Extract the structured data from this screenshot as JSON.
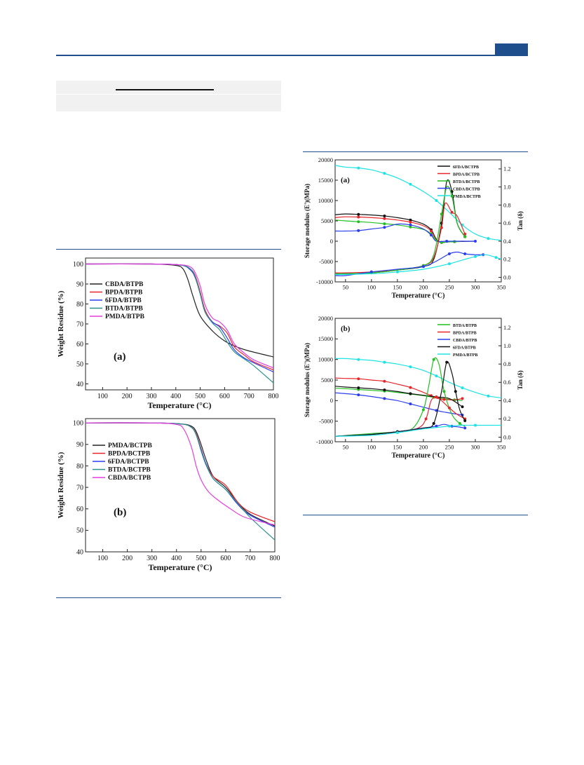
{
  "chart_data": [
    {
      "id": "tga_a",
      "type": "line",
      "panel_label": "(a)",
      "xlabel": "Temperature (°C)",
      "ylabel": "Weight Residue (%)",
      "xlim": [
        30,
        800
      ],
      "ylim": [
        37,
        103
      ],
      "xticks": [
        100,
        200,
        300,
        400,
        500,
        600,
        700,
        800
      ],
      "yticks": [
        40,
        50,
        60,
        70,
        80,
        90,
        100
      ],
      "legend_position": "top-left",
      "series": [
        {
          "name": "CBDA/BTPB",
          "color": "#222222",
          "x": [
            30,
            300,
            400,
            430,
            450,
            470,
            500,
            550,
            600,
            650,
            700,
            800
          ],
          "y": [
            100,
            100,
            99.3,
            97.5,
            92,
            84,
            74,
            66.5,
            61.5,
            58.5,
            56.5,
            53.5
          ]
        },
        {
          "name": "BPDA/BTPB",
          "color": "#e8262a",
          "x": [
            30,
            300,
            420,
            460,
            480,
            500,
            520,
            550,
            580,
            610,
            640,
            680,
            720,
            800
          ],
          "y": [
            100,
            100,
            99.5,
            97.5,
            94,
            86,
            77,
            71,
            69,
            65.5,
            58.5,
            54.5,
            51,
            47
          ]
        },
        {
          "name": "6FDA/BTPB",
          "color": "#2a3ef0",
          "x": [
            30,
            300,
            420,
            460,
            480,
            500,
            520,
            550,
            580,
            610,
            640,
            680,
            720,
            800
          ],
          "y": [
            100,
            100,
            99.5,
            97,
            93,
            85,
            76,
            71,
            68.5,
            63,
            57,
            53,
            50.5,
            46
          ]
        },
        {
          "name": "BTDA/BTPB",
          "color": "#2b8f8f",
          "x": [
            30,
            300,
            420,
            460,
            480,
            500,
            520,
            550,
            580,
            610,
            640,
            680,
            720,
            800
          ],
          "y": [
            100,
            100,
            99.5,
            97.5,
            93.5,
            85,
            76,
            70.5,
            67,
            61,
            56,
            52.5,
            49,
            40.5
          ]
        },
        {
          "name": "PMDA/BTPB",
          "color": "#e53de0",
          "x": [
            30,
            300,
            420,
            460,
            480,
            500,
            520,
            550,
            580,
            610,
            640,
            680,
            720,
            800
          ],
          "y": [
            100,
            100,
            99.6,
            98.5,
            95.5,
            89,
            79.5,
            73,
            71,
            67,
            60,
            55.5,
            52,
            48
          ]
        }
      ]
    },
    {
      "id": "tga_b",
      "type": "line",
      "panel_label": "(b)",
      "xlabel": "Temperature (°C)",
      "ylabel": "Weight Residue (%)",
      "xlim": [
        30,
        800
      ],
      "ylim": [
        40,
        102
      ],
      "xticks": [
        100,
        200,
        300,
        400,
        500,
        600,
        700,
        800
      ],
      "yticks": [
        40,
        50,
        60,
        70,
        80,
        90,
        100
      ],
      "legend_position": "top-right",
      "series": [
        {
          "name": "PMDA/BCTPB",
          "color": "#222222",
          "x": [
            30,
            300,
            420,
            460,
            480,
            500,
            520,
            550,
            600,
            650,
            700,
            800
          ],
          "y": [
            100,
            100,
            99.5,
            98.5,
            96,
            90,
            83,
            75,
            70,
            63,
            57.5,
            52
          ]
        },
        {
          "name": "BPDA/BCTPB",
          "color": "#e8262a",
          "x": [
            30,
            300,
            420,
            460,
            480,
            500,
            520,
            550,
            600,
            650,
            700,
            800
          ],
          "y": [
            100,
            100,
            99.5,
            98,
            95,
            88,
            81,
            75,
            71,
            63,
            58.5,
            54
          ]
        },
        {
          "name": "6FDA/BCTPB",
          "color": "#2a3ef0",
          "x": [
            30,
            300,
            420,
            460,
            480,
            500,
            520,
            550,
            600,
            650,
            700,
            800
          ],
          "y": [
            100,
            100,
            99.5,
            98,
            94.5,
            87.5,
            81,
            74,
            69,
            62,
            57,
            51.5
          ]
        },
        {
          "name": "BTDA/BCTPB",
          "color": "#2b8f8f",
          "x": [
            30,
            300,
            420,
            460,
            480,
            500,
            520,
            550,
            600,
            650,
            700,
            800
          ],
          "y": [
            100,
            100,
            99.5,
            98,
            94.5,
            87,
            80.5,
            74,
            69,
            62.5,
            56,
            45.5
          ]
        },
        {
          "name": "CBDA/BCTPB",
          "color": "#e53de0",
          "x": [
            30,
            300,
            400,
            430,
            460,
            480,
            500,
            530,
            570,
            620,
            680,
            800
          ],
          "y": [
            100,
            100,
            99.3,
            97,
            89,
            80,
            73.5,
            68,
            64,
            60,
            56,
            52.5
          ]
        }
      ]
    },
    {
      "id": "dma_a",
      "type": "line",
      "panel_label": "(a)",
      "xlabel": "Temperature (°C)",
      "ylabel": "Storage modulus (E')(MPa)",
      "y2label": "Tan (δ)",
      "xlim": [
        30,
        350
      ],
      "ylim": [
        -10000,
        20000
      ],
      "y2lim": [
        -0.05,
        1.3
      ],
      "xticks": [
        50,
        100,
        150,
        200,
        250,
        300,
        350
      ],
      "yticks": [
        -10000,
        -5000,
        0,
        5000,
        10000,
        15000,
        20000
      ],
      "y2ticks": [
        0.0,
        0.2,
        0.4,
        0.6,
        0.8,
        1.0,
        1.2
      ],
      "legend_position": "top-right",
      "series": [
        {
          "name": "6FDA/BCTPB",
          "color": "#111111",
          "axis": "left",
          "x": [
            30,
            50,
            75,
            100,
            125,
            150,
            175,
            200,
            215,
            225,
            235,
            245,
            260,
            300
          ],
          "y": [
            6500,
            6700,
            6600,
            6450,
            6200,
            5800,
            5200,
            4200,
            2800,
            500,
            -300,
            -200,
            -100,
            0
          ]
        },
        {
          "name": "BPDA/BCTPB",
          "color": "#e8262a",
          "axis": "left",
          "x": [
            30,
            50,
            75,
            100,
            125,
            150,
            175,
            200,
            215,
            225,
            235,
            245,
            260,
            275
          ],
          "y": [
            5800,
            6000,
            5950,
            5800,
            5550,
            5200,
            4700,
            3800,
            2500,
            300,
            -300,
            -200,
            -100,
            0
          ]
        },
        {
          "name": "BTDA/BCTPB",
          "color": "#20c020",
          "axis": "left",
          "x": [
            30,
            50,
            75,
            100,
            125,
            150,
            175,
            200,
            215,
            225,
            235,
            245,
            260,
            275
          ],
          "y": [
            5200,
            5000,
            4800,
            4600,
            4300,
            4000,
            3500,
            2900,
            1800,
            200,
            -300,
            -200,
            -100,
            0
          ]
        },
        {
          "name": "CBDA/BCTPB",
          "color": "#2a3ef0",
          "axis": "left",
          "x": [
            30,
            50,
            75,
            100,
            125,
            150,
            175,
            200,
            215,
            225,
            245,
            275,
            300
          ],
          "y": [
            2500,
            2500,
            2600,
            3000,
            3400,
            4200,
            4000,
            3000,
            1500,
            0,
            0,
            0,
            0
          ]
        },
        {
          "name": "PMDA/BCTPB",
          "color": "#1de3e3",
          "axis": "right",
          "x": [
            30,
            50,
            75,
            100,
            125,
            150,
            175,
            200,
            225,
            250,
            275,
            300,
            325,
            350
          ],
          "y": [
            1.24,
            1.22,
            1.21,
            1.19,
            1.15,
            1.1,
            1.03,
            0.95,
            0.85,
            0.72,
            0.58,
            0.48,
            0.43,
            0.41
          ]
        },
        {
          "name": "6FDA/BCTPB tan δ",
          "color": "#111111",
          "axis": "right",
          "x": [
            30,
            50,
            100,
            150,
            200,
            220,
            235,
            245,
            255,
            265,
            280
          ],
          "y": [
            0.04,
            0.04,
            0.05,
            0.08,
            0.12,
            0.2,
            0.6,
            1.06,
            0.95,
            0.6,
            0.45
          ]
        },
        {
          "name": "BPDA/BCTPB tan δ",
          "color": "#e8262a",
          "axis": "right",
          "x": [
            30,
            50,
            100,
            150,
            200,
            220,
            235,
            242,
            255,
            265,
            280
          ],
          "y": [
            0.05,
            0.05,
            0.06,
            0.08,
            0.13,
            0.22,
            0.55,
            0.82,
            0.72,
            0.68,
            0.48
          ]
        },
        {
          "name": "BTDA/BCTPB tan δ",
          "color": "#20c020",
          "axis": "right",
          "x": [
            30,
            50,
            100,
            150,
            200,
            220,
            235,
            245,
            255,
            265,
            280
          ],
          "y": [
            0.04,
            0.04,
            0.05,
            0.08,
            0.13,
            0.25,
            0.7,
            1.0,
            0.9,
            0.6,
            0.45
          ]
        },
        {
          "name": "CBDA/BCTPB tan δ",
          "color": "#2a3ef0",
          "axis": "right",
          "x": [
            30,
            50,
            100,
            150,
            200,
            225,
            250,
            265,
            280,
            300,
            315
          ],
          "y": [
            0.02,
            0.02,
            0.06,
            0.09,
            0.12,
            0.18,
            0.26,
            0.28,
            0.26,
            0.25,
            0.25
          ]
        },
        {
          "name": "PMDA/BCTPB tan δ",
          "color": "#1de3e3",
          "axis": "right",
          "x": [
            30,
            100,
            150,
            200,
            250,
            280,
            300,
            320,
            340,
            350
          ],
          "y": [
            0.03,
            0.04,
            0.06,
            0.09,
            0.15,
            0.2,
            0.23,
            0.25,
            0.22,
            0.2
          ]
        }
      ]
    },
    {
      "id": "dma_b",
      "type": "line",
      "panel_label": "(b)",
      "xlabel": "Temperature (°C)",
      "ylabel": "Storage modulus (E')(MPa)",
      "y2label": "Tan (δ)",
      "xlim": [
        30,
        350
      ],
      "ylim": [
        -10000,
        20000
      ],
      "y2lim": [
        -0.05,
        1.3
      ],
      "xticks": [
        50,
        100,
        150,
        200,
        250,
        300,
        350
      ],
      "yticks": [
        -10000,
        -5000,
        0,
        5000,
        10000,
        15000,
        20000
      ],
      "y2ticks": [
        0.0,
        0.2,
        0.4,
        0.6,
        0.8,
        1.0,
        1.2
      ],
      "legend_position": "top-right",
      "series": [
        {
          "name": "BTDA/BTPB",
          "color": "#20c020",
          "axis": "left",
          "x": [
            30,
            50,
            75,
            100,
            125,
            150,
            175,
            200,
            220,
            240,
            260,
            275
          ],
          "y": [
            3000,
            2900,
            2700,
            2500,
            2300,
            2000,
            1600,
            1200,
            800,
            400,
            200,
            0
          ]
        },
        {
          "name": "BPDA/BTPB",
          "color": "#e8262a",
          "axis": "left",
          "x": [
            30,
            50,
            75,
            100,
            125,
            150,
            175,
            200,
            215,
            225,
            240,
            260,
            275
          ],
          "y": [
            5500,
            5400,
            5300,
            5000,
            4700,
            4000,
            3200,
            2000,
            1200,
            600,
            300,
            200,
            500
          ]
        },
        {
          "name": "CBDA/BTPB",
          "color": "#2a3ef0",
          "axis": "left",
          "x": [
            30,
            50,
            75,
            100,
            125,
            150,
            175,
            200,
            225,
            250,
            275
          ],
          "y": [
            1900,
            1700,
            1400,
            1000,
            500,
            0,
            -800,
            -1600,
            -2400,
            -3000,
            -3500
          ]
        },
        {
          "name": "6FDA/BTPB",
          "color": "#111111",
          "axis": "left",
          "x": [
            30,
            50,
            75,
            100,
            125,
            150,
            175,
            200,
            225,
            250,
            275
          ],
          "y": [
            3500,
            3300,
            3100,
            2900,
            2600,
            2200,
            1700,
            1300,
            900,
            500,
            -1500
          ]
        },
        {
          "name": "PMDA/BTPB",
          "color": "#1de3e3",
          "axis": "right",
          "x": [
            30,
            50,
            75,
            100,
            125,
            150,
            175,
            200,
            225,
            250,
            275,
            300,
            325,
            350
          ],
          "y": [
            0.86,
            0.86,
            0.85,
            0.84,
            0.82,
            0.8,
            0.77,
            0.73,
            0.67,
            0.6,
            0.54,
            0.49,
            0.45,
            0.43
          ]
        },
        {
          "name": "BTDA/BTPB tan δ",
          "color": "#20c020",
          "axis": "right",
          "x": [
            30,
            100,
            150,
            180,
            200,
            210,
            220,
            230,
            240,
            255,
            270,
            280
          ],
          "y": [
            0.01,
            0.04,
            0.06,
            0.1,
            0.3,
            0.55,
            0.85,
            0.8,
            0.5,
            0.25,
            0.15,
            0.12
          ]
        },
        {
          "name": "BPDA/BTPB tan δ",
          "color": "#e8262a",
          "axis": "right",
          "x": [
            30,
            100,
            150,
            190,
            205,
            215,
            225,
            235,
            250,
            265,
            280
          ],
          "y": [
            0.01,
            0.03,
            0.06,
            0.1,
            0.2,
            0.4,
            0.44,
            0.4,
            0.32,
            0.25,
            0.2
          ]
        },
        {
          "name": "CBDA/BTPB tan δ",
          "color": "#2a3ef0",
          "axis": "right",
          "x": [
            30,
            100,
            150,
            200,
            225,
            240,
            255,
            270,
            280
          ],
          "y": [
            0.01,
            0.03,
            0.06,
            0.1,
            0.12,
            0.14,
            0.12,
            0.11,
            0.1
          ]
        },
        {
          "name": "6FDA/BTPB tan δ",
          "color": "#111111",
          "axis": "right",
          "x": [
            30,
            100,
            150,
            200,
            220,
            235,
            245,
            255,
            262,
            270,
            280
          ],
          "y": [
            0.01,
            0.03,
            0.06,
            0.1,
            0.15,
            0.5,
            0.82,
            0.7,
            0.5,
            0.3,
            0.18
          ]
        },
        {
          "name": "PMDA/BTPB tan δ",
          "color": "#1de3e3",
          "axis": "right",
          "x": [
            30,
            100,
            150,
            200,
            250,
            275,
            300,
            330,
            350
          ],
          "y": [
            0.01,
            0.02,
            0.05,
            0.09,
            0.12,
            0.13,
            0.13,
            0.13,
            0.13
          ]
        }
      ]
    }
  ]
}
